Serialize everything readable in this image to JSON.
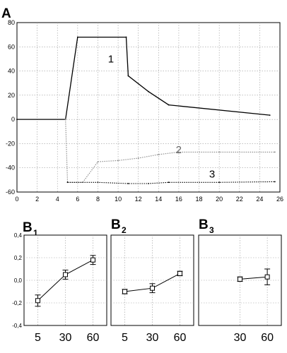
{
  "chart_data": [
    {
      "panel": "A",
      "type": "line",
      "xlim": [
        0,
        26
      ],
      "ylim": [
        -60,
        80
      ],
      "xticks": [
        0,
        2,
        4,
        6,
        8,
        10,
        12,
        14,
        16,
        18,
        20,
        22,
        24,
        26
      ],
      "yticks": [
        -60,
        -40,
        -20,
        0,
        20,
        40,
        60,
        80
      ],
      "grid": true,
      "series": [
        {
          "name": "1",
          "style": "solid",
          "color": "#000000",
          "points": [
            [
              0,
              0
            ],
            [
              4.8,
              0
            ],
            [
              6,
              68
            ],
            [
              10.8,
              68
            ],
            [
              11,
              36
            ],
            [
              13,
              23
            ],
            [
              15,
              12
            ],
            [
              25,
              3.5
            ]
          ]
        },
        {
          "name": "2",
          "style": "dotted",
          "color": "#888888",
          "points": [
            [
              4.8,
              0
            ],
            [
              5,
              -52
            ],
            [
              6.5,
              -52
            ],
            [
              8,
              -35
            ],
            [
              10,
              -34
            ],
            [
              12,
              -32
            ],
            [
              14,
              -29
            ],
            [
              16,
              -27
            ],
            [
              20,
              -27
            ],
            [
              25.5,
              -27
            ]
          ]
        },
        {
          "name": "3",
          "style": "dotted",
          "color": "#000000",
          "points": [
            [
              5,
              -52
            ],
            [
              8,
              -52
            ],
            [
              11,
              -53
            ],
            [
              13,
              -53
            ],
            [
              15,
              -52
            ],
            [
              20,
              -52
            ],
            [
              25.5,
              -51.5
            ]
          ]
        }
      ]
    },
    {
      "panel": "B1",
      "type": "scatter",
      "ylim": [
        -0.4,
        0.4
      ],
      "yticks": [
        "0,4",
        "0,2",
        "0,0",
        "-0,2",
        "-0,4"
      ],
      "categories": [
        "5",
        "30",
        "60"
      ],
      "values": [
        -0.18,
        0.05,
        0.18
      ],
      "errors": [
        0.05,
        0.04,
        0.04
      ]
    },
    {
      "panel": "B2",
      "type": "scatter",
      "ylim": [
        -0.4,
        0.4
      ],
      "categories": [
        "5",
        "30",
        "60"
      ],
      "values": [
        -0.1,
        -0.07,
        0.06
      ],
      "errors": [
        0.02,
        0.04,
        0.02
      ]
    },
    {
      "panel": "B3",
      "type": "scatter",
      "ylim": [
        -0.4,
        0.4
      ],
      "categories": [
        "30",
        "60"
      ],
      "values": [
        0.01,
        0.03
      ],
      "errors": [
        0.02,
        0.07
      ]
    }
  ],
  "labels": {
    "panel_a": "A",
    "panel_b": "B",
    "b1_sub": "1",
    "b2_sub": "2",
    "b3_sub": "3"
  }
}
